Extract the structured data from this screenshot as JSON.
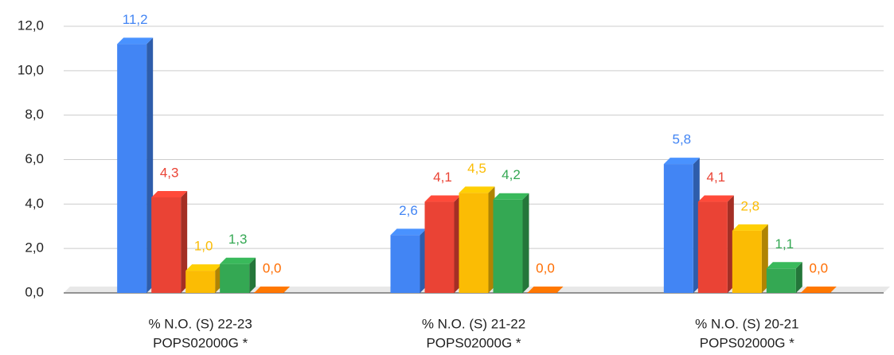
{
  "chart_data": {
    "type": "bar3d",
    "categories": [
      [
        "% N.O. (S) 22-23",
        "POPS02000G *"
      ],
      [
        "% N.O. (S) 21-22",
        "POPS02000G *"
      ],
      [
        "% N.O. (S) 20-21",
        "POPS02000G *"
      ]
    ],
    "series": [
      {
        "color": "#4285f4",
        "values": [
          11.2,
          2.6,
          5.8
        ],
        "value_labels": [
          "11,2",
          "2,6",
          "5,8"
        ]
      },
      {
        "color": "#ea4335",
        "values": [
          4.3,
          4.1,
          4.1
        ],
        "value_labels": [
          "4,3",
          "4,1",
          "4,1"
        ]
      },
      {
        "color": "#fbbc04",
        "values": [
          1.0,
          4.5,
          2.8
        ],
        "value_labels": [
          "1,0",
          "4,5",
          "2,8"
        ]
      },
      {
        "color": "#34a853",
        "values": [
          1.3,
          4.2,
          1.1
        ],
        "value_labels": [
          "1,3",
          "4,2",
          "1,1"
        ]
      },
      {
        "color": "#ff6d01",
        "values": [
          0,
          0,
          0
        ],
        "value_labels": [
          "0,0",
          "0,0",
          "0,0"
        ]
      }
    ],
    "ylim": [
      0,
      12
    ],
    "yticks": [
      {
        "value": 0,
        "label": "0,0"
      },
      {
        "value": 2,
        "label": "2,0"
      },
      {
        "value": 4,
        "label": "4,0"
      },
      {
        "value": 6,
        "label": "6,0"
      },
      {
        "value": 8,
        "label": "8,0"
      },
      {
        "value": 10,
        "label": "10,0"
      },
      {
        "value": 12,
        "label": "12,0"
      }
    ],
    "grid": true
  }
}
